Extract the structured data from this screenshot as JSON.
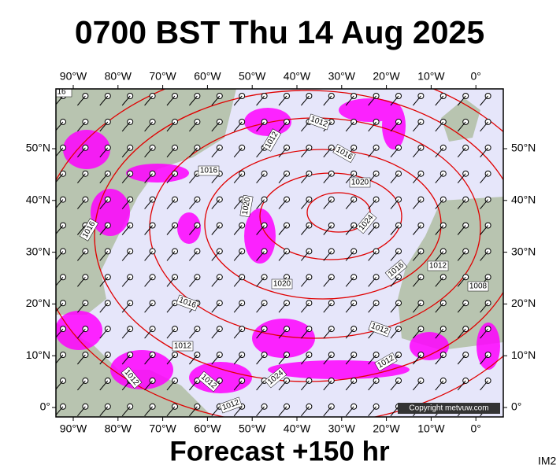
{
  "header": {
    "title": "0700 BST Thu 14 Aug 2025"
  },
  "map": {
    "lon_labels": [
      "90°W",
      "80°W",
      "70°W",
      "60°W",
      "50°W",
      "40°W",
      "30°W",
      "20°W",
      "10°W",
      "0°"
    ],
    "lat_labels": [
      "0°",
      "10°N",
      "20°N",
      "30°N",
      "40°N",
      "50°N"
    ],
    "isobar_labels": [
      "16",
      "1012",
      "1012",
      "1016",
      "1016",
      "1020",
      "1020",
      "1024",
      "1016",
      "1020",
      "1016",
      "1016",
      "1012",
      "1008",
      "1012",
      "1012",
      "1012",
      "1012",
      "1012",
      "1024",
      "1012"
    ],
    "copyright": "Copyright metvuw.com"
  },
  "footer": {
    "forecast": "Forecast +150 hr",
    "image_id": "IM2"
  }
}
